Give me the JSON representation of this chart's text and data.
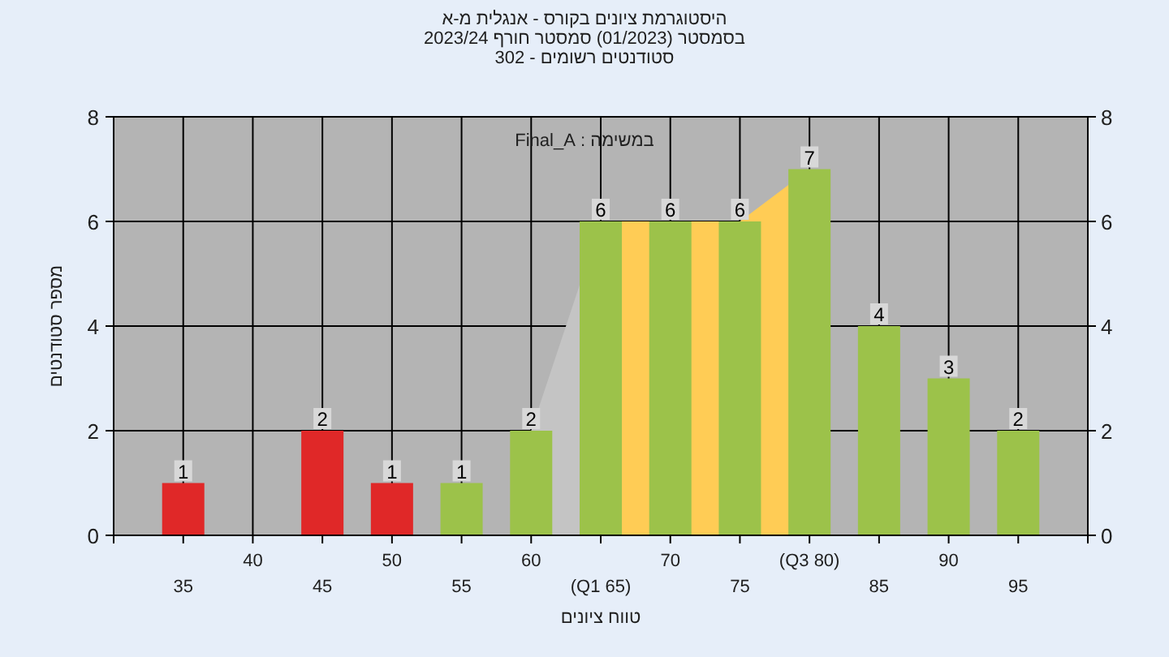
{
  "chart_data": {
    "type": "bar",
    "title": "היסטוגרמת ציונים בקורס - אנגלית מ-א",
    "subtitle": "בסמסטר (01/2023) סמסטר חורף 2023/24",
    "xlabel": "טווח ציונים",
    "ylabel": "מספר סטודנטים",
    "annotations": [
      "סטודנטים רשומים - 302",
      "במשימה : Final_A"
    ],
    "categories": [
      "35",
      "40",
      "45",
      "50",
      "55",
      "60",
      "(Q1 65)",
      "70",
      "75",
      "(Q3 80)",
      "85",
      "90",
      "95"
    ],
    "series": [
      {
        "type": "area",
        "color": "#c4c4c4",
        "values": [
          null,
          null,
          null,
          null,
          null,
          2,
          6,
          null,
          null,
          null,
          null,
          null,
          null
        ]
      },
      {
        "type": "area",
        "color": "#ffcc55",
        "values": [
          null,
          null,
          null,
          null,
          null,
          null,
          6,
          6,
          6,
          7,
          null,
          null,
          null
        ]
      },
      {
        "colors": [
          "#e02828",
          "#e02828",
          "#e02828",
          "#e02828",
          "#9cc24a",
          "#9cc24a",
          "#9cc24a",
          "#9cc24a",
          "#9cc24a",
          "#9cc24a",
          "#9cc24a",
          "#9cc24a",
          "#9cc24a"
        ],
        "values": [
          1,
          0,
          2,
          1,
          1,
          2,
          6,
          6,
          6,
          7,
          4,
          3,
          2
        ],
        "value_labels": [
          "1",
          null,
          "2",
          "1",
          "1",
          "2",
          "6",
          "6",
          "6",
          "7",
          "4",
          "3",
          "2"
        ]
      }
    ],
    "ylim": [
      0,
      8
    ],
    "yticks": [
      0,
      2,
      4,
      6,
      8
    ],
    "y2lim": [
      0,
      8
    ],
    "y2ticks": [
      0,
      2,
      4,
      6,
      8
    ],
    "grid": true
  }
}
